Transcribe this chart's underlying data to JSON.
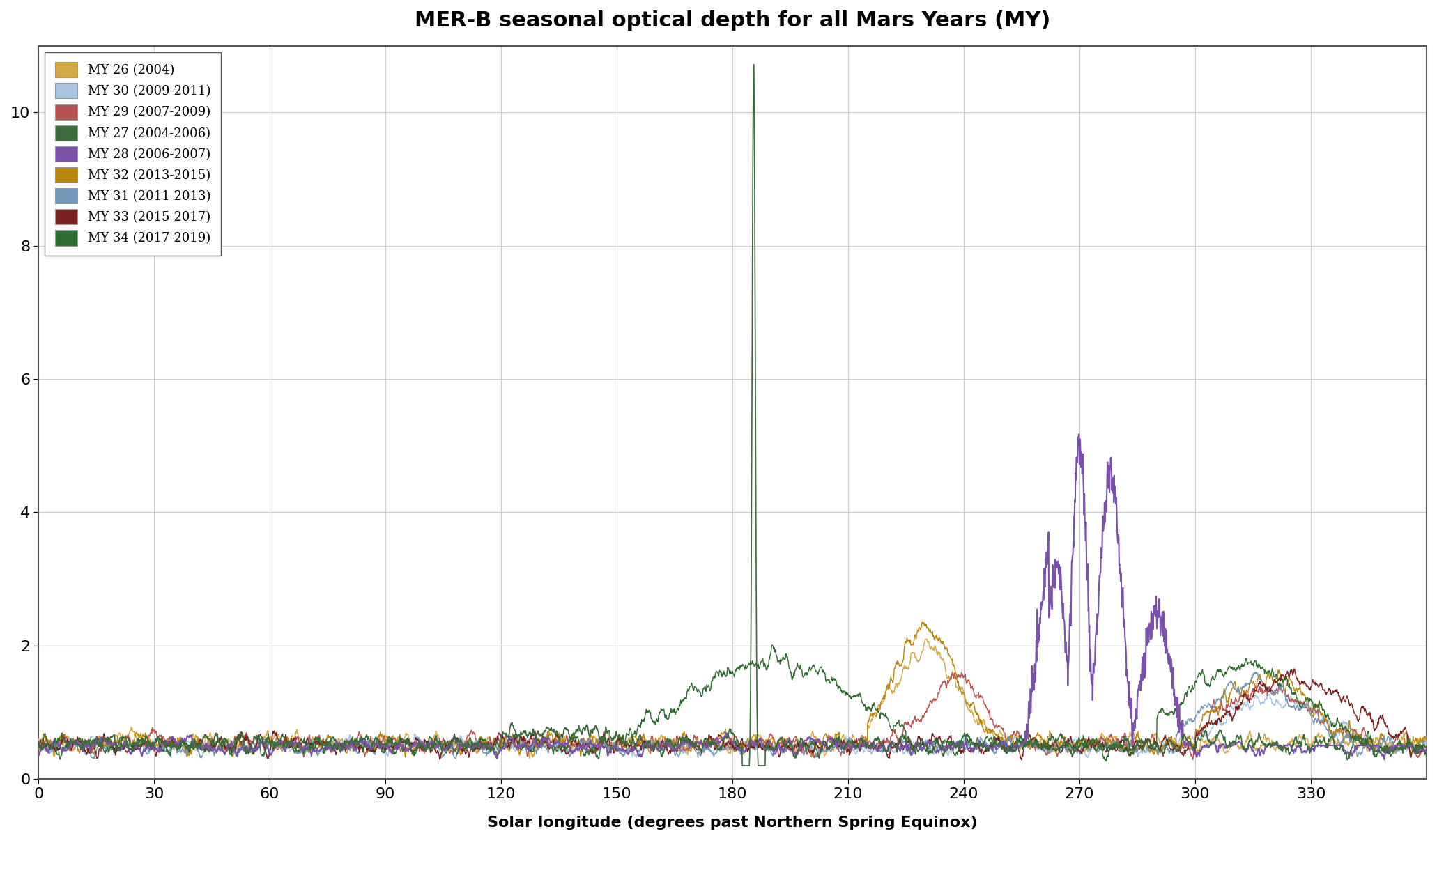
{
  "title": "MER-B seasonal optical depth for all Mars Years (MY)",
  "xlabel": "Solar longitude (degrees past Northern Spring Equinox)",
  "ylabel": "",
  "xlim": [
    0,
    360
  ],
  "ylim": [
    0,
    11
  ],
  "yticks": [
    0,
    2,
    4,
    6,
    8,
    10
  ],
  "xticks": [
    0,
    30,
    60,
    90,
    120,
    150,
    180,
    210,
    240,
    270,
    300,
    330
  ],
  "series": [
    {
      "label": "MY 26 (2004)",
      "color": "#D4A843",
      "lw": 1.0,
      "zorder": 5
    },
    {
      "label": "MY 30 (2009-2011)",
      "color": "#A8C4E0",
      "lw": 1.0,
      "zorder": 5
    },
    {
      "label": "MY 29 (2007-2009)",
      "color": "#B85450",
      "lw": 1.0,
      "zorder": 5
    },
    {
      "label": "MY 27 (2004-2006)",
      "color": "#3A6B3A",
      "lw": 1.2,
      "zorder": 10
    },
    {
      "label": "MY 28 (2006-2007)",
      "color": "#7B52AB",
      "lw": 1.5,
      "zorder": 9
    },
    {
      "label": "MY 32 (2013-2015)",
      "color": "#B8860B",
      "lw": 1.0,
      "zorder": 5
    },
    {
      "label": "MY 31 (2011-2013)",
      "color": "#7098B8",
      "lw": 1.0,
      "zorder": 5
    },
    {
      "label": "MY 33 (2015-2017)",
      "color": "#7B2020",
      "lw": 1.0,
      "zorder": 5
    },
    {
      "label": "MY 34 (2017-2019)",
      "color": "#2E6B2E",
      "lw": 1.0,
      "zorder": 5
    }
  ],
  "background_color": "#ffffff",
  "grid_color": "#cccccc",
  "title_fontsize": 22,
  "label_fontsize": 16,
  "tick_fontsize": 16,
  "legend_fontsize": 13
}
